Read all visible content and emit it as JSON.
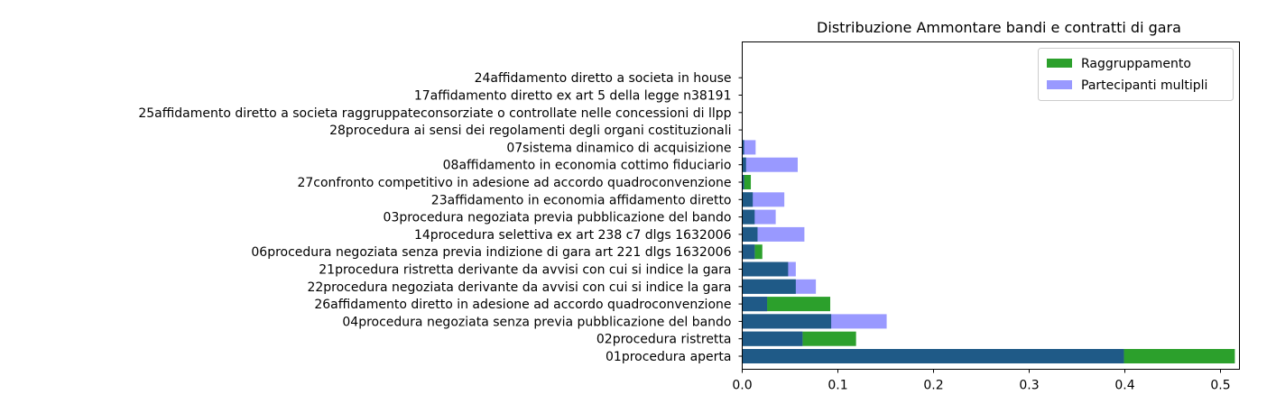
{
  "chart_data": {
    "type": "bar",
    "orientation": "horizontal",
    "stacked": "overlay",
    "title": "Distribuzione Ammontare bandi e contratti di gara",
    "xlabel": "",
    "ylabel": "",
    "xlim": [
      0,
      0.52
    ],
    "xticks": [
      "0.0",
      "0.1",
      "0.2",
      "0.3",
      "0.4",
      "0.5"
    ],
    "xtick_values": [
      0,
      0.1,
      0.2,
      0.3,
      0.4,
      0.5
    ],
    "grid": false,
    "legend_position": "top-right",
    "categories": [
      "01procedura aperta",
      "02procedura ristretta",
      "04procedura negoziata senza previa pubblicazione del bando",
      "26affidamento diretto in adesione ad accordo quadroconvenzione",
      "22procedura negoziata derivante da avvisi con cui si indice la gara",
      "21procedura ristretta derivante da avvisi con cui si indice la gara",
      "06procedura negoziata senza previa indizione di  gara art 221 dlgs 1632006",
      "14procedura selettiva ex art 238 c7 dlgs 1632006",
      "03procedura negoziata previa pubblicazione del bando",
      "23affidamento in economia  affidamento diretto",
      "27confronto competitivo in adesione ad accordo quadroconvenzione",
      "08affidamento in economia  cottimo fiduciario",
      "07sistema dinamico di acquisizione",
      "28procedura ai sensi dei regolamenti degli organi costituzionali",
      "25affidamento diretto a societa raggruppateconsorziate o controllate nelle concessioni di llpp",
      "17affidamento diretto ex art 5 della legge n38191",
      "24affidamento diretto a societa in house"
    ],
    "series": [
      {
        "name": "Raggruppamento",
        "color": "#2ca02c",
        "values": [
          0.515,
          0.119,
          0.093,
          0.092,
          0.056,
          0.048,
          0.021,
          0.016,
          0.013,
          0.011,
          0.009,
          0.004,
          0.002,
          0.0,
          0.0,
          0.0,
          0.0
        ]
      },
      {
        "name": "Partecipanti multipli",
        "color": "#9999ff",
        "values": [
          0.399,
          0.063,
          0.151,
          0.026,
          0.077,
          0.056,
          0.013,
          0.065,
          0.035,
          0.044,
          0.002,
          0.058,
          0.014,
          0.0,
          0.0,
          0.0,
          0.0
        ]
      }
    ],
    "overlap_color": "#1f5a87"
  }
}
